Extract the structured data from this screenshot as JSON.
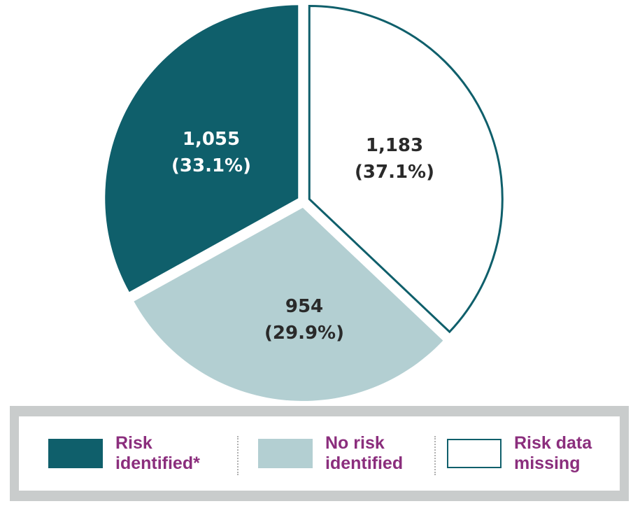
{
  "chart_data": {
    "type": "pie",
    "title": "",
    "slices": [
      {
        "name": "Risk identified*",
        "value": 1055,
        "label_value": "1,055",
        "label_pct": "(33.1%)",
        "color": "#0f5f6b"
      },
      {
        "name": "No risk identified",
        "value": 954,
        "label_value": "954",
        "label_pct": "(29.9%)",
        "color": "#b3cfd2"
      },
      {
        "name": "Risk data missing",
        "value": 1183,
        "label_value": "1,183",
        "label_pct": "(37.1%)",
        "color": "#ffffff"
      }
    ],
    "outline_color": "#0f5f6b",
    "label_colors": {
      "dark_bg": "#ffffff",
      "light_bg": "#2a2a2a"
    }
  },
  "legend": {
    "items": [
      {
        "text": "Risk\nidentified*",
        "fill": "#0f5f6b",
        "border": "#0f5f6b"
      },
      {
        "text": "No risk\nidentified",
        "fill": "#b3cfd2",
        "border": "#b3cfd2"
      },
      {
        "text": "Risk data\nmissing",
        "fill": "#ffffff",
        "border": "#0f5f6b"
      }
    ],
    "text_color": "#8b2e7d"
  }
}
